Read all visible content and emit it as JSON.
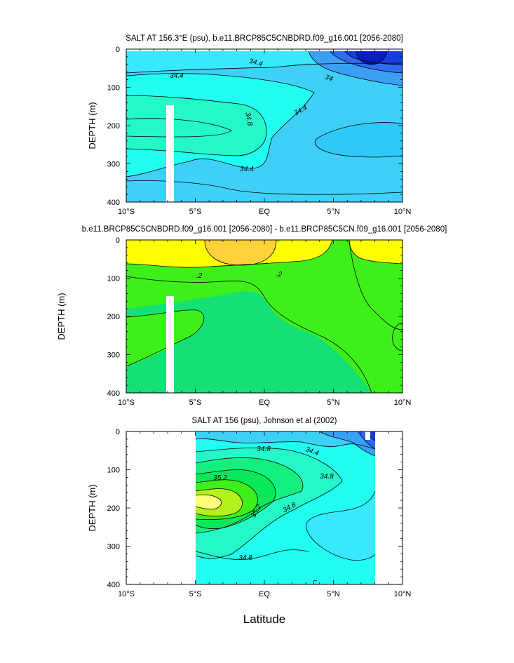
{
  "x_labels": [
    "10°S",
    "5°S",
    "EQ",
    "5°N",
    "10°N"
  ],
  "y_labels": [
    "0",
    "100",
    "200",
    "300",
    "400"
  ],
  "xlabel": "Latitude",
  "colors": {
    "deep_blue": "#1a3de0",
    "blue": "#2f6cf2",
    "mid_blue": "#3aa0f5",
    "light_blue": "#3fd0f8",
    "cyan": "#38e8ff",
    "aqua": "#20fff0",
    "teal": "#24f8c8",
    "green": "#14f080",
    "bright_green": "#3ef01a",
    "lime": "#b4f21c",
    "yellow": "#ffff00",
    "gold": "#ffd23a",
    "light_yellow": "#fcff7a",
    "white": "#ffffff"
  },
  "chart_data": [
    {
      "type": "contour",
      "title": "SALT AT 156.3°E (psu), b.e11.BRCP85C5CNBDRD.f09_g16.001 [2056-2080]",
      "xlabel": "",
      "ylabel": "DEPTH (m)",
      "x_range": [
        -10,
        10
      ],
      "y_range": [
        0,
        400
      ],
      "contour_labels": [
        "34.4",
        "34.4",
        "34",
        "34.4",
        "34.8",
        "34.4"
      ]
    },
    {
      "type": "contour",
      "title": "b.e11.BRCP85C5CNBDRD.f09_g16.001 [2056-2080] - b.e11.BRCP85C5CN.f09_g16.001 [2056-2080]",
      "xlabel": "",
      "ylabel": "DEPTH (m)",
      "x_range": [
        -10,
        10
      ],
      "y_range": [
        0,
        400
      ],
      "contour_labels": [
        ".2",
        ".2"
      ]
    },
    {
      "type": "contour",
      "title": "SALT AT 156 (psu), Johnson et al (2002)",
      "xlabel": "Latitude",
      "ylabel": "DEPTH (m)",
      "x_range": [
        -10,
        10
      ],
      "y_range": [
        0,
        400
      ],
      "contour_labels": [
        "34.8",
        "34.4",
        "35.2",
        "34.8",
        "35.2",
        "34.8",
        "34.8"
      ]
    }
  ]
}
